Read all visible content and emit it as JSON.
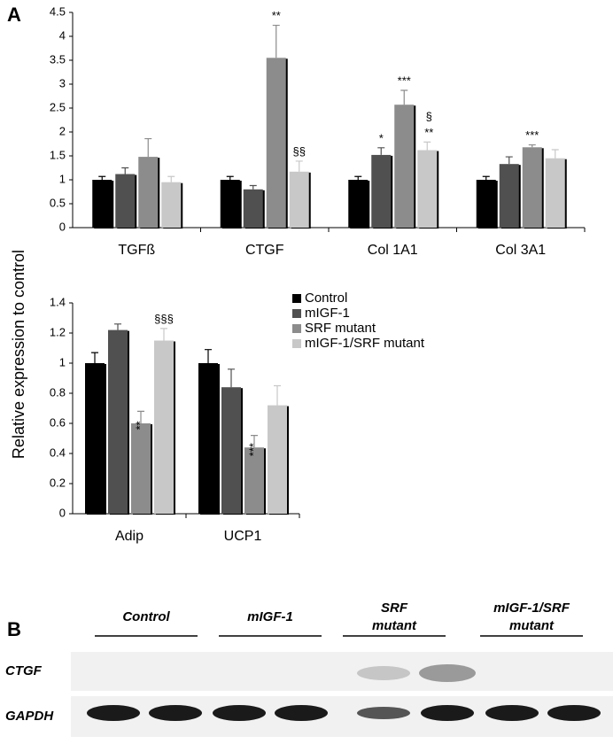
{
  "panel_labels": [
    "A",
    "B"
  ],
  "y_label": "Relative expression to control",
  "chart_data": [
    {
      "type": "bar",
      "categories": [
        "TGFß",
        "CTGF",
        "Col 1A1",
        "Col 3A1"
      ],
      "ylim": [
        0,
        4.5
      ],
      "yticks": [
        0,
        0.5,
        1,
        1.5,
        2,
        2.5,
        3,
        3.5,
        4,
        4.5
      ],
      "series": [
        {
          "color": "#000000",
          "values": [
            1,
            1,
            1,
            1
          ],
          "errors": [
            0.07,
            0.07,
            0.07,
            0.07
          ]
        },
        {
          "color": "#505050",
          "values": [
            1.12,
            0.8,
            1.52,
            1.33
          ],
          "errors": [
            0.13,
            0.08,
            0.15,
            0.15
          ],
          "annotations": [
            null,
            null,
            "*",
            null
          ]
        },
        {
          "color": "#8c8c8c",
          "values": [
            1.48,
            3.55,
            2.57,
            1.68
          ],
          "errors": [
            0.38,
            0.68,
            0.3,
            0.05
          ],
          "annotations": [
            null,
            "**",
            "***",
            "***"
          ]
        },
        {
          "color": "#c8c8c8",
          "values": [
            0.95,
            1.17,
            1.62,
            1.45
          ],
          "errors": [
            0.12,
            0.22,
            0.17,
            0.18
          ],
          "annotations": [
            null,
            "§§",
            [
              "§",
              "**"
            ],
            null
          ]
        }
      ]
    },
    {
      "type": "bar",
      "categories": [
        "Adip",
        "UCP1"
      ],
      "ylim": [
        0,
        1.4
      ],
      "yticks": [
        0,
        0.2,
        0.4,
        0.6,
        0.8,
        1,
        1.2,
        1.4
      ],
      "series": [
        {
          "name": "Control",
          "color": "#000000",
          "values": [
            1,
            1
          ],
          "errors": [
            0.07,
            0.09
          ]
        },
        {
          "name": "mIGF-1",
          "color": "#505050",
          "values": [
            1.22,
            0.84
          ],
          "errors": [
            0.04,
            0.12
          ]
        },
        {
          "name": "SRF mutant",
          "color": "#8c8c8c",
          "values": [
            0.6,
            0.44
          ],
          "errors": [
            0.08,
            0.08
          ],
          "annotations": [
            "**",
            "***"
          ],
          "annotation_style": "vertical"
        },
        {
          "name": "mIGF-1/SRF mutant",
          "color": "#c8c8c8",
          "values": [
            1.15,
            0.72
          ],
          "errors": [
            0.08,
            0.13
          ],
          "annotations": [
            "§§§",
            null
          ]
        }
      ]
    }
  ],
  "blot": {
    "groups": [
      [
        "Control"
      ],
      [
        "mIGF-1"
      ],
      [
        "SRF",
        "mutant"
      ],
      [
        "mIGF-1/SRF",
        "mutant"
      ]
    ],
    "rows": [
      "CTGF",
      "GAPDH"
    ]
  }
}
